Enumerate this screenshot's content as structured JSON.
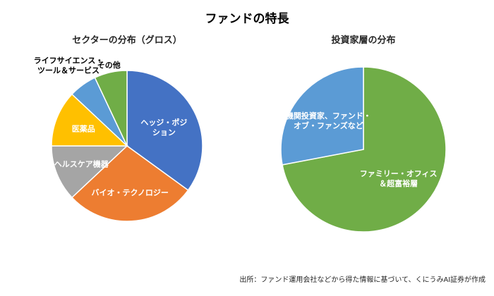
{
  "page": {
    "title": "ファンドの特長",
    "source": "出所：ファンド運用会社などから得た情報に基づいて、くにうみAI証券が作成"
  },
  "chart_data": [
    {
      "type": "pie",
      "name": "sector-distribution",
      "title": "セクターの分布（グロス）",
      "unit": "percent",
      "start_angle_deg": 0,
      "direction": "clockwise",
      "legend": "none",
      "slices": [
        {
          "label": "ヘッジ・ポジション",
          "label_lines": [
            "ヘッジ・ポジ",
            "ション"
          ],
          "value": 35,
          "color": "#4472C4",
          "label_inside": true,
          "label_color": "#ffffff",
          "label_radius_frac": 0.55
        },
        {
          "label": "バイオ・テクノロジー",
          "label_lines": [
            "バイオ・テクノロジー"
          ],
          "value": 28,
          "color": "#ED7D31",
          "label_inside": true,
          "label_color": "#ffffff",
          "label_radius_frac": 0.62
        },
        {
          "label": "ヘルスケア機器",
          "label_lines": [
            "ヘルスケア機器"
          ],
          "value": 12,
          "color": "#A5A5A5",
          "label_inside": true,
          "label_color": "#ffffff",
          "label_radius_frac": 0.65
        },
        {
          "label": "医薬品",
          "label_lines": [
            "医薬品"
          ],
          "value": 12,
          "color": "#FFC000",
          "label_inside": true,
          "label_color": "#ffffff",
          "label_radius_frac": 0.62
        },
        {
          "label": "ライフサイエンス・ツール＆サービス",
          "label_lines": [
            "ライフサイエンス・",
            "ツール＆サービス"
          ],
          "value": 6,
          "color": "#5B9BD5",
          "label_inside": false,
          "label_color": "#000000",
          "label_radius_frac": 1.32
        },
        {
          "label": "その他",
          "label_lines": [
            "その他"
          ],
          "value": 7,
          "color": "#70AD47",
          "label_inside": false,
          "label_color": "#000000",
          "label_radius_frac": 1.1
        }
      ]
    },
    {
      "type": "pie",
      "name": "investor-distribution",
      "title": "投資家層の分布",
      "unit": "percent",
      "start_angle_deg": 0,
      "direction": "clockwise",
      "legend": "none",
      "slices": [
        {
          "label": "ファミリー・オフィス＆超富裕層",
          "label_lines": [
            "ファミリー・オフィス",
            "＆超富裕層"
          ],
          "value": 72,
          "color": "#70AD47",
          "label_inside": true,
          "label_color": "#ffffff",
          "label_radius_frac": 0.55
        },
        {
          "label": "機関投資家、ファンド・オブ・ファンズなど",
          "label_lines": [
            "機関投資家、ファンド・",
            "オブ・ファンズなど"
          ],
          "value": 28,
          "color": "#5B9BD5",
          "label_inside": true,
          "label_color": "#ffffff",
          "label_radius_frac": 0.55
        }
      ]
    }
  ]
}
